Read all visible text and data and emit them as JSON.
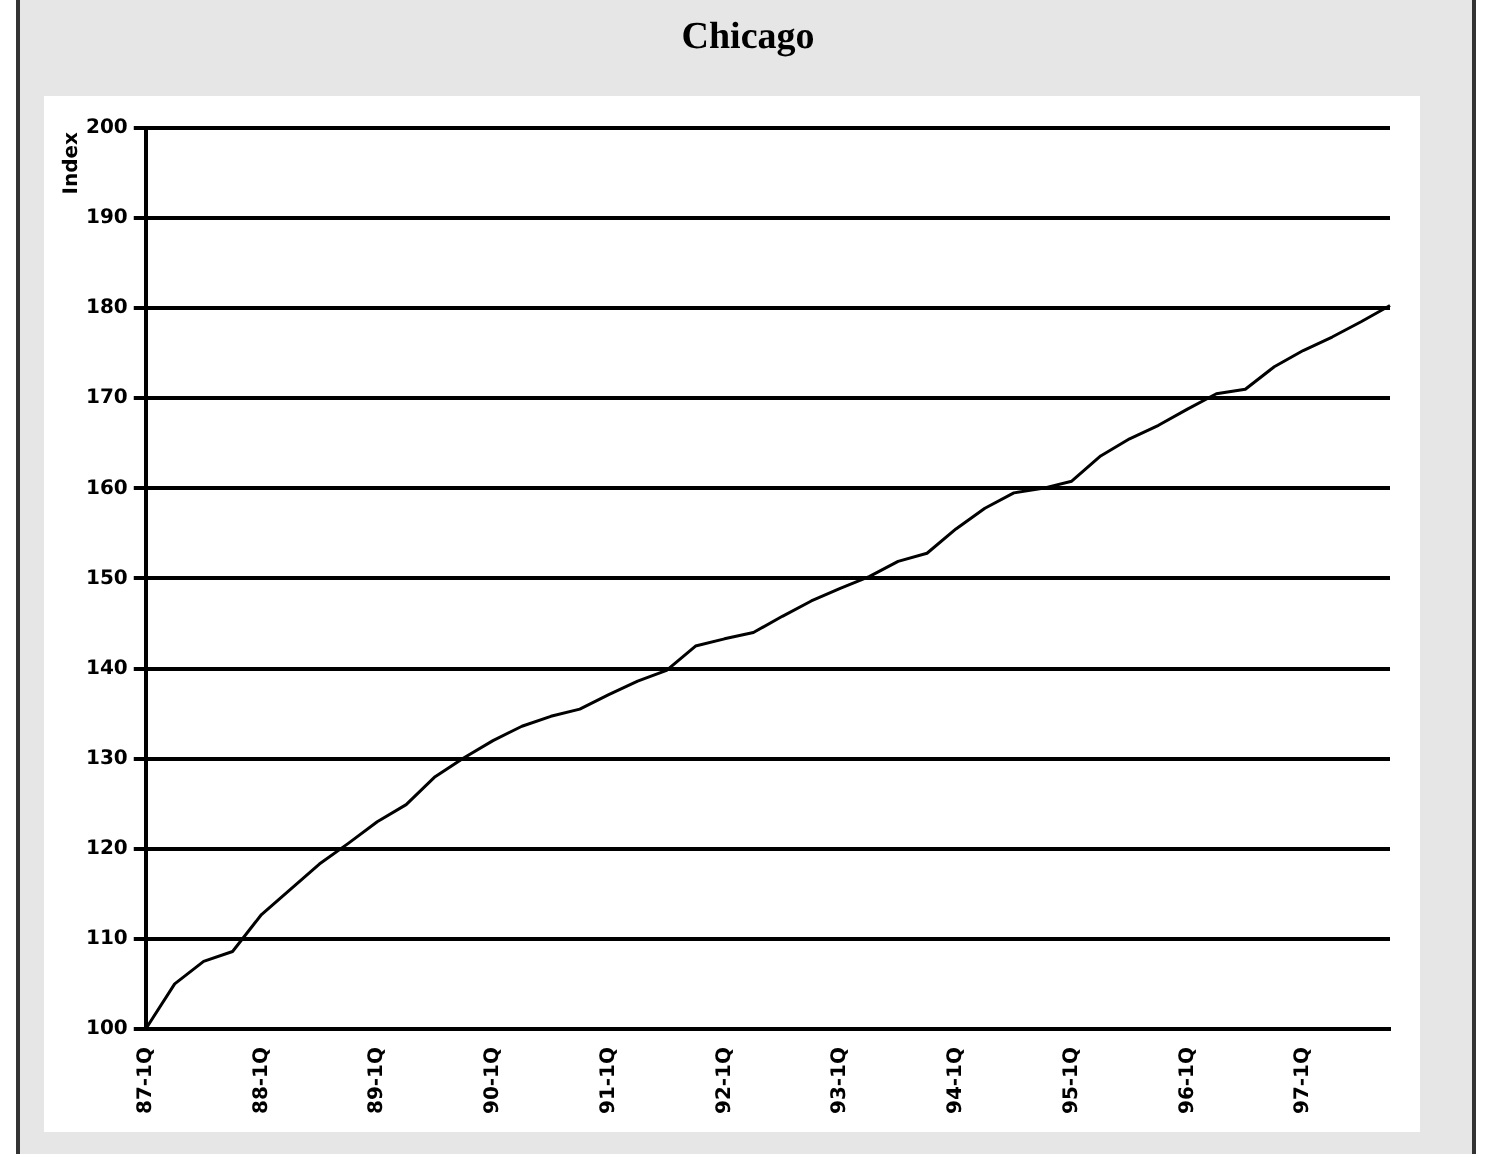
{
  "chart_data": {
    "type": "line",
    "title": "Chicago",
    "ylabel": "Index",
    "categories": [
      "87-1Q",
      null,
      null,
      null,
      "88-1Q",
      null,
      null,
      null,
      "89-1Q",
      null,
      null,
      null,
      "90-1Q",
      null,
      null,
      null,
      "91-1Q",
      null,
      null,
      null,
      "92-1Q",
      null,
      null,
      null,
      "93-1Q",
      null,
      null,
      null,
      "94-1Q",
      null,
      null,
      null,
      "95-1Q",
      null,
      null,
      null,
      "96-1Q",
      null,
      null,
      null,
      "97-1Q",
      null,
      null,
      null
    ],
    "series": [
      {
        "color": "#000000",
        "values": [
          100,
          105,
          107.5,
          108.6,
          112.7,
          115.5,
          118.3,
          120.6,
          123,
          124.9,
          128,
          130.1,
          132,
          133.6,
          134.7,
          135.5,
          137.1,
          138.6,
          139.8,
          142.5,
          143.3,
          144,
          145.8,
          147.5,
          148.9,
          150.2,
          151.9,
          152.8,
          155.5,
          157.8,
          159.5,
          160,
          160.8,
          163.6,
          165.5,
          167,
          168.8,
          170.5,
          171,
          173.5,
          175.3,
          176.8,
          178.5,
          180.3
        ]
      }
    ],
    "ylim": [
      100,
      200
    ],
    "yticks": [
      100,
      110,
      120,
      130,
      140,
      150,
      160,
      170,
      180,
      190,
      200
    ],
    "grid": "y",
    "marker": "none",
    "line_style": "solid"
  }
}
